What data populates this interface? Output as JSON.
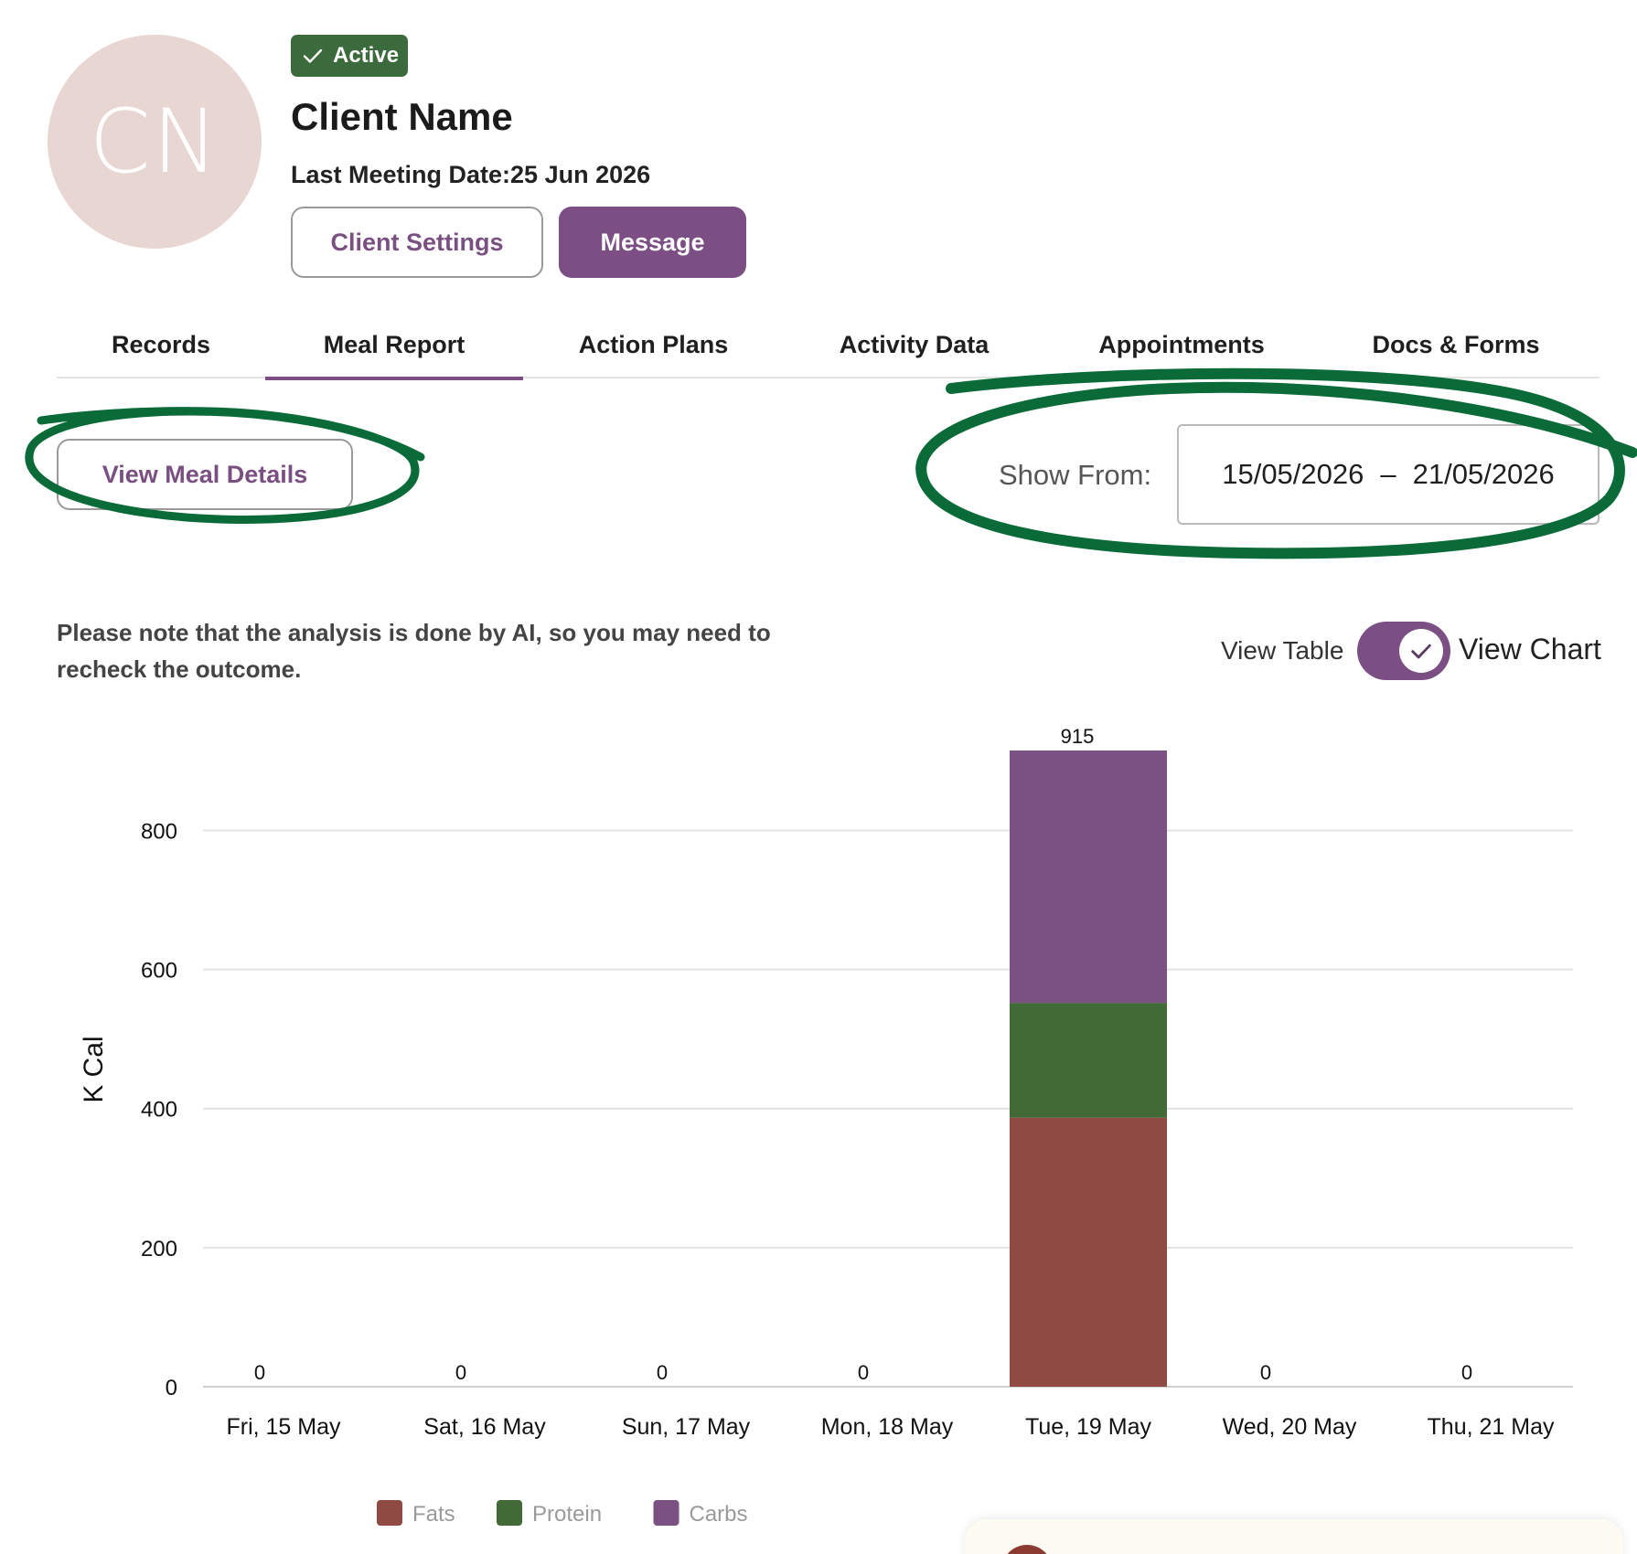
{
  "client": {
    "initials": "CN",
    "status": "Active",
    "name": "Client Name",
    "last_meeting": "Last Meeting Date:25 Jun 2026"
  },
  "buttons": {
    "client_settings": "Client Settings",
    "message": "Message",
    "view_meal_details": "View Meal Details"
  },
  "tabs": [
    {
      "label": "Records",
      "active": false
    },
    {
      "label": "Meal Report",
      "active": true
    },
    {
      "label": "Action Plans",
      "active": false
    },
    {
      "label": "Activity Data",
      "active": false
    },
    {
      "label": "Appointments",
      "active": false
    },
    {
      "label": "Docs & Forms",
      "active": false
    }
  ],
  "date_filter": {
    "label": "Show From:",
    "start": "15/05/2026",
    "separator": "–",
    "end": "21/05/2026"
  },
  "note": "Please note that the analysis is done by AI, so you may need to recheck the outcome.",
  "view_toggle": {
    "left_label": "View Table",
    "right_label": "View Chart",
    "checked": true
  },
  "colors": {
    "primary": "#7b4f84",
    "active_badge": "#3b6a3c",
    "fats": "#8f4b43",
    "protein": "#426a36",
    "carbs": "#7b5083",
    "highlight": "#0a6b38"
  },
  "icons": {
    "badge": "check-icon",
    "toggle": "check-icon"
  },
  "chart_data": {
    "type": "bar",
    "stacked": true,
    "ylabel": "K Cal",
    "ylim": [
      0,
      915
    ],
    "yticks": [
      0,
      200,
      400,
      600,
      800
    ],
    "grid": true,
    "legend_position": "bottom-left",
    "categories": [
      "Fri, 15 May",
      "Sat, 16 May",
      "Sun, 17 May",
      "Mon, 18 May",
      "Tue, 19 May",
      "Wed, 20 May",
      "Thu, 21 May"
    ],
    "totals": [
      0,
      0,
      0,
      0,
      915,
      0,
      0
    ],
    "series": [
      {
        "name": "Fats",
        "color": "#8f4b43",
        "values": [
          0,
          0,
          0,
          0,
          387,
          0,
          0
        ]
      },
      {
        "name": "Protein",
        "color": "#426a36",
        "values": [
          0,
          0,
          0,
          0,
          165,
          0,
          0
        ]
      },
      {
        "name": "Carbs",
        "color": "#7b5083",
        "values": [
          0,
          0,
          0,
          0,
          363,
          0,
          0
        ]
      }
    ]
  }
}
